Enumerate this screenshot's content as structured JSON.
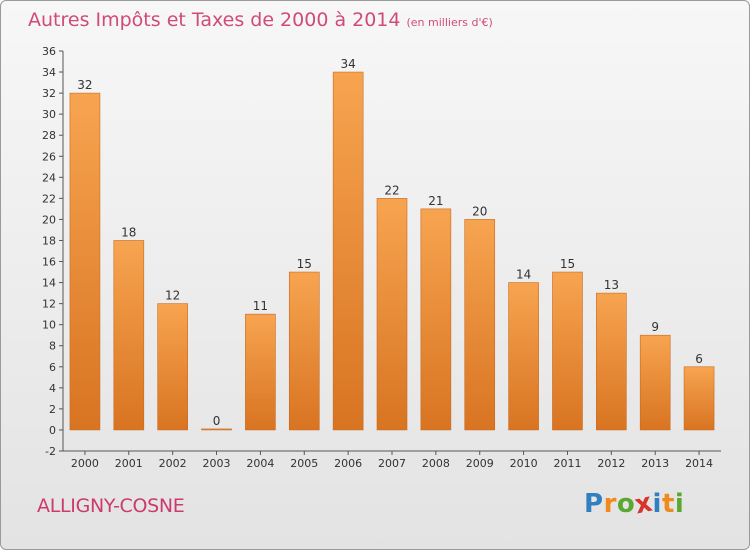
{
  "title": {
    "main": "Autres Impôts et Taxes de 2000 à 2014",
    "unit": "(en milliers d'€)"
  },
  "commune": "ALLIGNY-COSNE",
  "logo": {
    "letters": [
      "P",
      "r",
      "o",
      "x",
      "i",
      "t",
      "i"
    ],
    "colors": [
      "#2f7fc1",
      "#f08a1c",
      "#5aa832",
      "#d8342b",
      "#2f7fc1",
      "#f08a1c",
      "#5aa832"
    ]
  },
  "colors": {
    "bar_top": "#f7a450",
    "bar_bottom": "#d87422",
    "title": "#d04a7a"
  },
  "chart_data": {
    "type": "bar",
    "categories": [
      "2000",
      "2001",
      "2002",
      "2003",
      "2004",
      "2005",
      "2006",
      "2007",
      "2008",
      "2009",
      "2010",
      "2011",
      "2012",
      "2013",
      "2014"
    ],
    "values": [
      32,
      18,
      12,
      0,
      11,
      15,
      34,
      22,
      21,
      20,
      14,
      15,
      13,
      9,
      6
    ],
    "ylim": [
      -2,
      36
    ],
    "yticks": [
      -2,
      0,
      2,
      4,
      6,
      8,
      10,
      12,
      14,
      16,
      18,
      20,
      22,
      24,
      26,
      28,
      30,
      32,
      34,
      36
    ],
    "grid": false
  }
}
